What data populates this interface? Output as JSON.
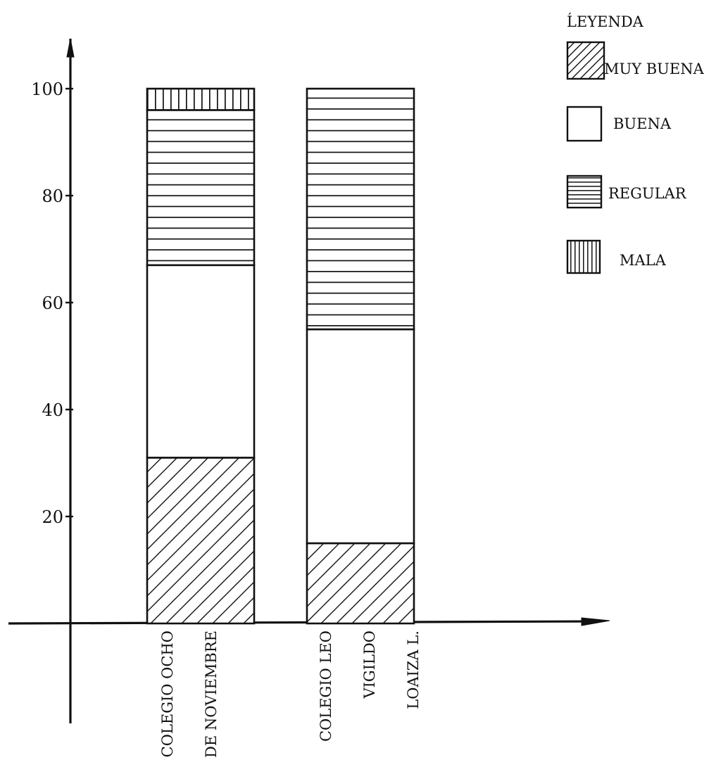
{
  "chart_data": {
    "type": "bar",
    "stacked": true,
    "title": "",
    "xlabel": "",
    "ylabel": "",
    "ylim": [
      0,
      100
    ],
    "yticks": [
      20,
      40,
      60,
      80,
      100
    ],
    "categories": [
      [
        "COLEGIO OCHO",
        "DE NOVIEMBRE"
      ],
      [
        "COLEGIO LEO",
        "VIGILDO",
        "LOAIZA L."
      ]
    ],
    "series": [
      {
        "name": "MUY BUENA",
        "pattern": "diagonal-hatch",
        "values": [
          31,
          15
        ]
      },
      {
        "name": "BUENA",
        "pattern": "blank",
        "values": [
          36,
          40
        ]
      },
      {
        "name": "REGULAR",
        "pattern": "horizontal-hatch",
        "values": [
          29,
          45
        ]
      },
      {
        "name": "MALA",
        "pattern": "vertical-hatch",
        "values": [
          4,
          0
        ]
      }
    ],
    "legend": {
      "title": "ĹEYENDA",
      "placement": "top-right"
    },
    "grid": false,
    "ink_color": "#111111",
    "background_color": "#ffffff"
  }
}
